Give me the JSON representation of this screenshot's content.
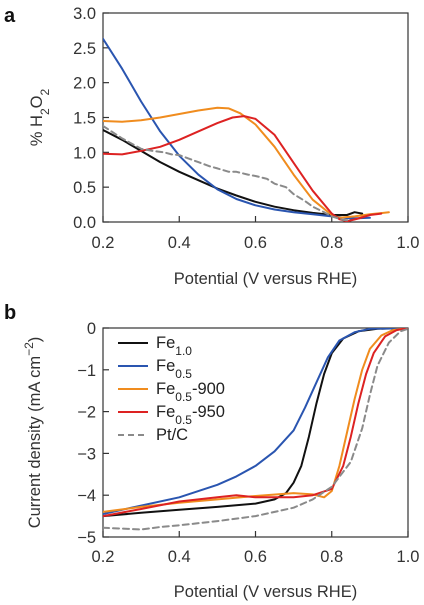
{
  "chart_data": [
    {
      "type": "line",
      "panel_label": "a",
      "ylabel": "% H2O2",
      "ylabel_parts": {
        "prefix": "% H",
        "sub1": "2",
        "mid": "O",
        "sub2": "2"
      },
      "xlabel": "Potential (V versus RHE)",
      "xlim": [
        0.2,
        1.0
      ],
      "ylim": [
        0.0,
        3.0
      ],
      "xticks": [
        "0.2",
        "0.4",
        "0.6",
        "0.8",
        "1.0"
      ],
      "yticks": [
        "0.0",
        "0.5",
        "1.0",
        "1.5",
        "2.0",
        "2.5",
        "3.0"
      ],
      "grid": false,
      "series": [
        {
          "key": "Fe1.0",
          "color": "#111111",
          "dash": "",
          "points": [
            [
              0.2,
              1.32
            ],
            [
              0.25,
              1.18
            ],
            [
              0.3,
              1.02
            ],
            [
              0.35,
              0.86
            ],
            [
              0.4,
              0.72
            ],
            [
              0.45,
              0.6
            ],
            [
              0.5,
              0.48
            ],
            [
              0.55,
              0.38
            ],
            [
              0.6,
              0.29
            ],
            [
              0.65,
              0.22
            ],
            [
              0.7,
              0.17
            ],
            [
              0.75,
              0.13
            ],
            [
              0.8,
              0.1
            ],
            [
              0.84,
              0.1
            ],
            [
              0.86,
              0.14
            ],
            [
              0.88,
              0.12
            ]
          ]
        },
        {
          "key": "Fe0.5",
          "color": "#2a55b0",
          "dash": "",
          "points": [
            [
              0.2,
              2.63
            ],
            [
              0.25,
              2.2
            ],
            [
              0.3,
              1.73
            ],
            [
              0.35,
              1.3
            ],
            [
              0.4,
              0.95
            ],
            [
              0.45,
              0.68
            ],
            [
              0.5,
              0.47
            ],
            [
              0.55,
              0.33
            ],
            [
              0.6,
              0.24
            ],
            [
              0.65,
              0.18
            ],
            [
              0.7,
              0.14
            ],
            [
              0.75,
              0.11
            ],
            [
              0.8,
              0.08
            ],
            [
              0.85,
              0.05
            ],
            [
              0.9,
              0.06
            ]
          ]
        },
        {
          "key": "Fe0.5-900",
          "color": "#f08c1e",
          "dash": "",
          "points": [
            [
              0.2,
              1.45
            ],
            [
              0.25,
              1.44
            ],
            [
              0.3,
              1.46
            ],
            [
              0.35,
              1.5
            ],
            [
              0.4,
              1.55
            ],
            [
              0.45,
              1.6
            ],
            [
              0.5,
              1.64
            ],
            [
              0.53,
              1.63
            ],
            [
              0.56,
              1.56
            ],
            [
              0.6,
              1.4
            ],
            [
              0.65,
              1.08
            ],
            [
              0.7,
              0.68
            ],
            [
              0.75,
              0.32
            ],
            [
              0.8,
              0.1
            ],
            [
              0.82,
              0.06
            ],
            [
              0.86,
              0.08
            ],
            [
              0.9,
              0.11
            ],
            [
              0.95,
              0.14
            ]
          ]
        },
        {
          "key": "Fe0.5-950",
          "color": "#dd2222",
          "dash": "",
          "points": [
            [
              0.2,
              0.98
            ],
            [
              0.25,
              0.97
            ],
            [
              0.3,
              1.02
            ],
            [
              0.35,
              1.08
            ],
            [
              0.4,
              1.18
            ],
            [
              0.45,
              1.3
            ],
            [
              0.5,
              1.42
            ],
            [
              0.54,
              1.5
            ],
            [
              0.57,
              1.52
            ],
            [
              0.6,
              1.48
            ],
            [
              0.65,
              1.25
            ],
            [
              0.7,
              0.85
            ],
            [
              0.75,
              0.45
            ],
            [
              0.8,
              0.12
            ],
            [
              0.82,
              0.04
            ],
            [
              0.84,
              0.01
            ],
            [
              0.87,
              0.05
            ],
            [
              0.9,
              0.1
            ],
            [
              0.93,
              0.12
            ]
          ]
        },
        {
          "key": "Pt/C",
          "color": "#8a8a8a",
          "dash": "6,4",
          "points": [
            [
              0.2,
              1.38
            ],
            [
              0.25,
              1.2
            ],
            [
              0.3,
              1.05
            ],
            [
              0.33,
              1.02
            ],
            [
              0.36,
              1.0
            ],
            [
              0.38,
              0.97
            ],
            [
              0.4,
              0.96
            ],
            [
              0.43,
              0.9
            ],
            [
              0.45,
              0.86
            ],
            [
              0.48,
              0.8
            ],
            [
              0.5,
              0.77
            ],
            [
              0.53,
              0.72
            ],
            [
              0.55,
              0.72
            ],
            [
              0.58,
              0.68
            ],
            [
              0.6,
              0.66
            ],
            [
              0.63,
              0.62
            ],
            [
              0.65,
              0.55
            ],
            [
              0.68,
              0.5
            ],
            [
              0.7,
              0.4
            ],
            [
              0.73,
              0.3
            ],
            [
              0.75,
              0.22
            ],
            [
              0.78,
              0.14
            ],
            [
              0.8,
              0.08
            ],
            [
              0.83,
              0.03
            ],
            [
              0.85,
              0.02
            ]
          ]
        }
      ]
    },
    {
      "type": "line",
      "panel_label": "b",
      "ylabel": "Current density (mA cm−2)",
      "ylabel_parts": {
        "prefix": "Current density (mA cm",
        "sup": "−2",
        "suffix": ")"
      },
      "xlabel": "Potential (V versus RHE)",
      "xlim": [
        0.2,
        1.0
      ],
      "ylim": [
        -5,
        0
      ],
      "xticks": [
        "0.2",
        "0.4",
        "0.6",
        "0.8",
        "1.0"
      ],
      "yticks": [
        "0",
        "−1",
        "−2",
        "−3",
        "−4",
        "−5"
      ],
      "grid": false,
      "legend_position": "upper-left",
      "series": [
        {
          "key": "Fe1.0",
          "name_main": "Fe",
          "name_sub": "1.0",
          "name_suffix": "",
          "color": "#111111",
          "dash": "",
          "points": [
            [
              0.2,
              -4.5
            ],
            [
              0.3,
              -4.42
            ],
            [
              0.4,
              -4.35
            ],
            [
              0.5,
              -4.28
            ],
            [
              0.6,
              -4.2
            ],
            [
              0.65,
              -4.1
            ],
            [
              0.68,
              -3.95
            ],
            [
              0.7,
              -3.7
            ],
            [
              0.72,
              -3.3
            ],
            [
              0.74,
              -2.6
            ],
            [
              0.76,
              -1.8
            ],
            [
              0.78,
              -1.1
            ],
            [
              0.8,
              -0.6
            ],
            [
              0.83,
              -0.25
            ],
            [
              0.87,
              -0.08
            ],
            [
              0.92,
              -0.02
            ],
            [
              1.0,
              0.0
            ]
          ]
        },
        {
          "key": "Fe0.5",
          "name_main": "Fe",
          "name_sub": "0.5",
          "name_suffix": "",
          "color": "#2a55b0",
          "dash": "",
          "points": [
            [
              0.2,
              -4.45
            ],
            [
              0.3,
              -4.25
            ],
            [
              0.4,
              -4.05
            ],
            [
              0.5,
              -3.75
            ],
            [
              0.55,
              -3.55
            ],
            [
              0.6,
              -3.3
            ],
            [
              0.65,
              -2.95
            ],
            [
              0.7,
              -2.45
            ],
            [
              0.73,
              -1.9
            ],
            [
              0.76,
              -1.3
            ],
            [
              0.79,
              -0.7
            ],
            [
              0.82,
              -0.3
            ],
            [
              0.86,
              -0.1
            ],
            [
              0.9,
              -0.02
            ],
            [
              1.0,
              0.0
            ]
          ]
        },
        {
          "key": "Fe0.5-900",
          "name_main": "Fe",
          "name_sub": "0.5",
          "name_suffix": "-900",
          "color": "#f08c1e",
          "dash": "",
          "points": [
            [
              0.2,
              -4.4
            ],
            [
              0.3,
              -4.28
            ],
            [
              0.4,
              -4.18
            ],
            [
              0.5,
              -4.1
            ],
            [
              0.6,
              -4.02
            ],
            [
              0.7,
              -3.95
            ],
            [
              0.75,
              -3.98
            ],
            [
              0.78,
              -4.05
            ],
            [
              0.8,
              -3.9
            ],
            [
              0.82,
              -3.3
            ],
            [
              0.84,
              -2.5
            ],
            [
              0.86,
              -1.7
            ],
            [
              0.88,
              -1.0
            ],
            [
              0.9,
              -0.5
            ],
            [
              0.93,
              -0.18
            ],
            [
              0.96,
              -0.05
            ],
            [
              1.0,
              0.0
            ]
          ]
        },
        {
          "key": "Fe0.5-950",
          "name_main": "Fe",
          "name_sub": "0.5",
          "name_suffix": "-950",
          "color": "#dd2222",
          "dash": "",
          "points": [
            [
              0.2,
              -4.5
            ],
            [
              0.3,
              -4.33
            ],
            [
              0.4,
              -4.15
            ],
            [
              0.5,
              -4.05
            ],
            [
              0.55,
              -4.0
            ],
            [
              0.6,
              -4.05
            ],
            [
              0.7,
              -4.05
            ],
            [
              0.75,
              -4.0
            ],
            [
              0.8,
              -3.85
            ],
            [
              0.83,
              -3.3
            ],
            [
              0.85,
              -2.6
            ],
            [
              0.87,
              -1.8
            ],
            [
              0.89,
              -1.1
            ],
            [
              0.91,
              -0.6
            ],
            [
              0.94,
              -0.2
            ],
            [
              0.97,
              -0.05
            ],
            [
              1.0,
              0.0
            ]
          ]
        },
        {
          "key": "Pt/C",
          "name_main": "Pt/C",
          "name_sub": "",
          "name_suffix": "",
          "color": "#8a8a8a",
          "dash": "6,4",
          "points": [
            [
              0.2,
              -4.78
            ],
            [
              0.25,
              -4.8
            ],
            [
              0.3,
              -4.82
            ],
            [
              0.35,
              -4.76
            ],
            [
              0.4,
              -4.72
            ],
            [
              0.5,
              -4.62
            ],
            [
              0.6,
              -4.5
            ],
            [
              0.7,
              -4.3
            ],
            [
              0.75,
              -4.1
            ],
            [
              0.8,
              -3.8
            ],
            [
              0.85,
              -3.2
            ],
            [
              0.88,
              -2.4
            ],
            [
              0.9,
              -1.6
            ],
            [
              0.92,
              -0.9
            ],
            [
              0.95,
              -0.35
            ],
            [
              0.98,
              -0.08
            ],
            [
              1.0,
              -0.02
            ]
          ]
        }
      ]
    }
  ]
}
